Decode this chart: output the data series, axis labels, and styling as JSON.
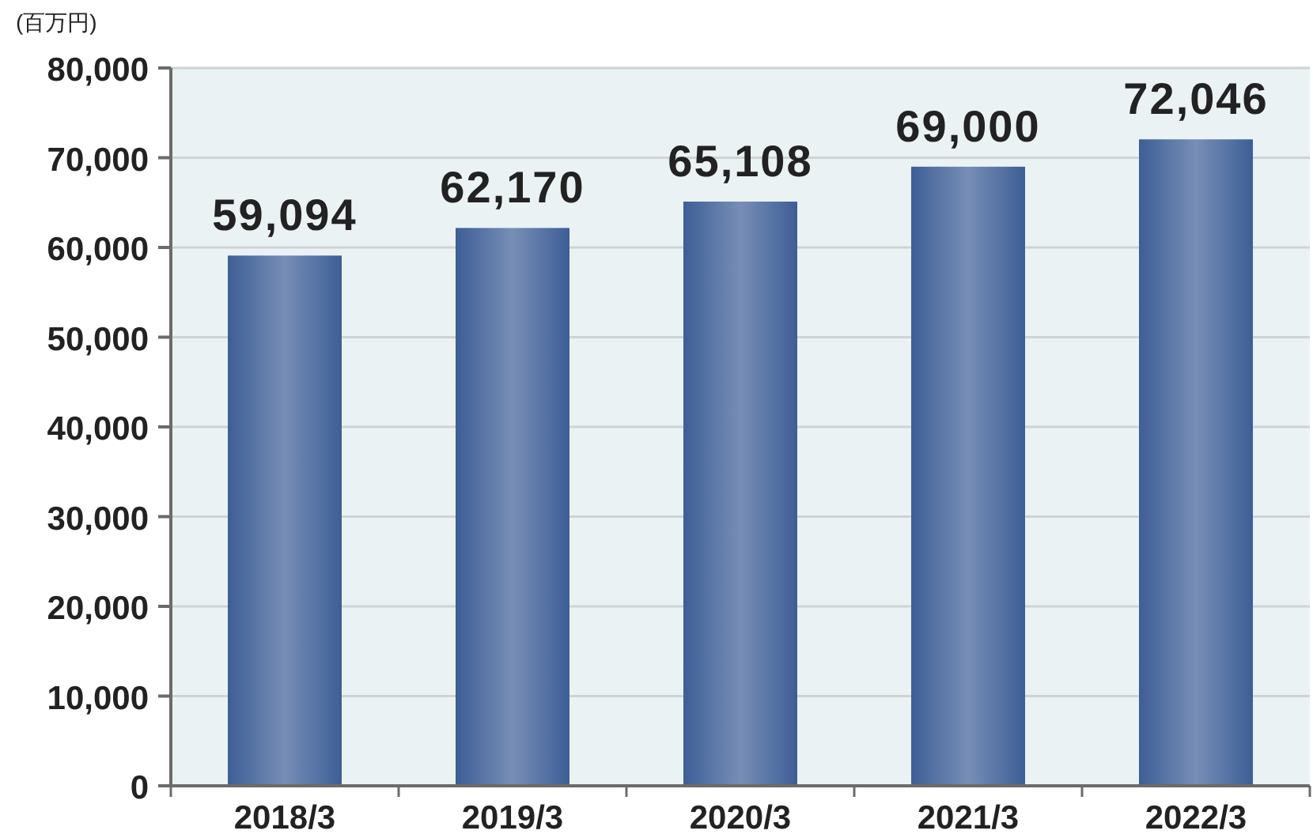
{
  "chart_data": {
    "type": "bar",
    "ylabel": "(百万円)",
    "categories": [
      "2018/3",
      "2019/3",
      "2020/3",
      "2021/3",
      "2022/3"
    ],
    "values": [
      59094,
      62170,
      65108,
      69000,
      72046
    ],
    "value_labels": [
      "59,094",
      "62,170",
      "65,108",
      "69,000",
      "72,046"
    ],
    "color": "#3d5e96",
    "ylim": [
      0,
      80000
    ],
    "yticks": [
      {
        "value": 0,
        "label": "0"
      },
      {
        "value": 10000,
        "label": "10,000"
      },
      {
        "value": 20000,
        "label": "20,000"
      },
      {
        "value": 30000,
        "label": "30,000"
      },
      {
        "value": 40000,
        "label": "40,000"
      },
      {
        "value": 50000,
        "label": "50,000"
      },
      {
        "value": 60000,
        "label": "60,000"
      },
      {
        "value": 70000,
        "label": "70,000"
      },
      {
        "value": 80000,
        "label": "80,000"
      }
    ],
    "grid": "y"
  }
}
